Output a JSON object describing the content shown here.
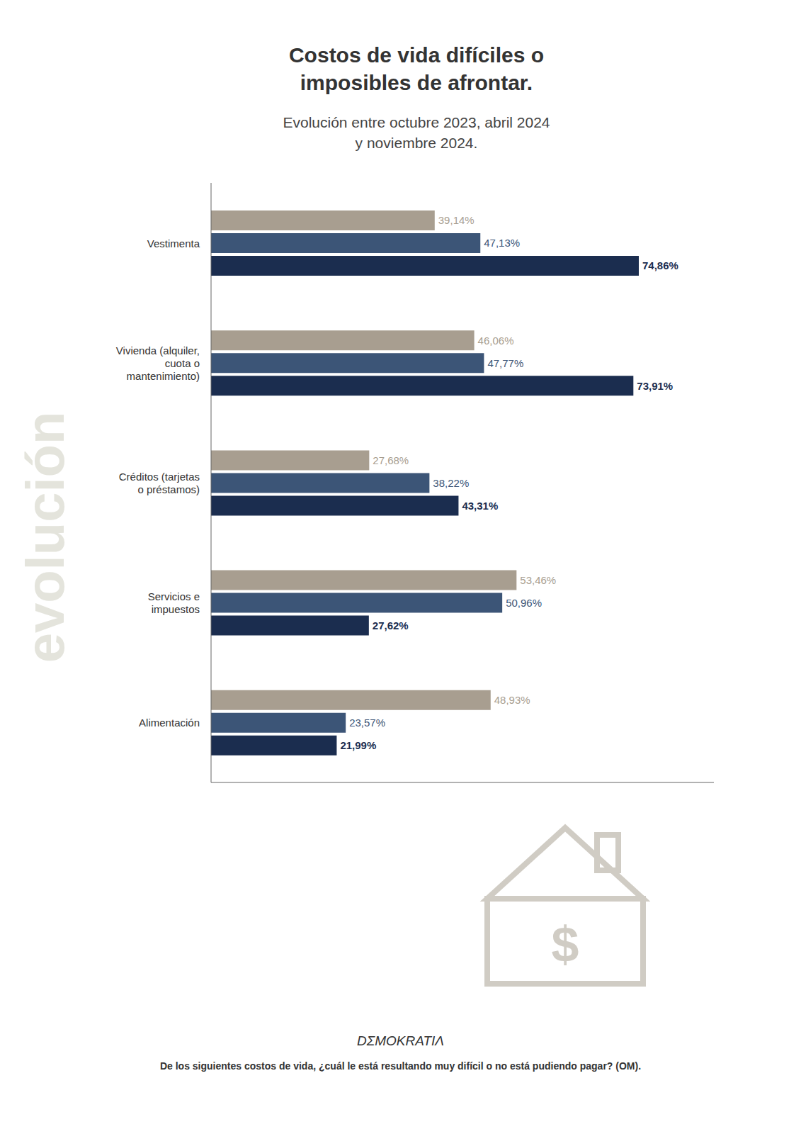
{
  "chart_data": {
    "type": "bar",
    "orientation": "horizontal",
    "title": "Costos de vida difíciles o\nimposibles de afrontar.",
    "subtitle": "Evolución entre octubre 2023, abril 2024\ny noviembre 2024.",
    "categories": [
      "Vestimenta",
      "Vivienda (alquiler,\ncuota o\nmantenimiento)",
      "Créditos (tarjetas\no préstamos)",
      "Servicios e\nimpuestos",
      "Alimentación"
    ],
    "series": [
      {
        "color": "#a89e90",
        "values": [
          39.14,
          46.06,
          27.68,
          53.46,
          48.93
        ],
        "value_labels": [
          "39,14%",
          "46,06%",
          "27,68%",
          "53,46%",
          "48,93%"
        ]
      },
      {
        "color": "#3c5577",
        "values": [
          47.13,
          47.77,
          38.22,
          50.96,
          23.57
        ],
        "value_labels": [
          "47,13%",
          "47,77%",
          "38,22%",
          "50,96%",
          "23,57%"
        ]
      },
      {
        "color": "#1b2d4f",
        "values": [
          74.86,
          73.91,
          43.31,
          27.62,
          21.99
        ],
        "value_labels": [
          "74,86%",
          "73,91%",
          "43,31%",
          "27,62%",
          "21,99%"
        ]
      }
    ],
    "xlim": [
      0,
      88
    ],
    "tick_labels": "y",
    "data_labels": true,
    "grid": false,
    "annotations": [
      "evolución",
      "$",
      "DΣMOKRATIΛ",
      "De los siguientes costos de vida, ¿cuál le está resultando muy difícil o no está pudiendo pagar? (OM)."
    ]
  }
}
